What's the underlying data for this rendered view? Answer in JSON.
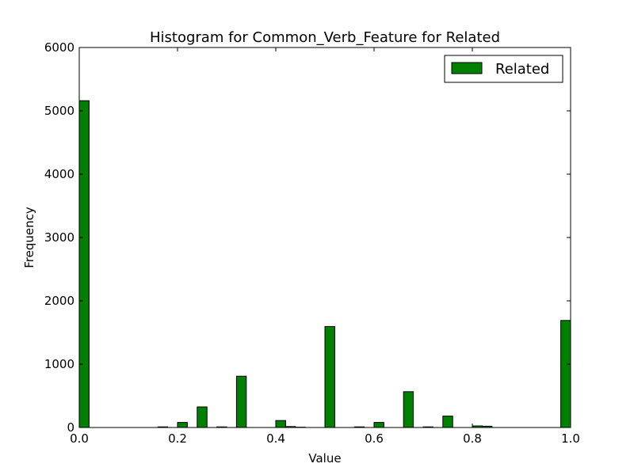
{
  "chart_data": {
    "type": "bar",
    "title": "Histogram for Common_Verb_Feature for Related",
    "xlabel": "Value",
    "ylabel": "Frequency",
    "xlim": [
      0.0,
      1.0
    ],
    "ylim": [
      0,
      6000
    ],
    "bin_width": 0.02,
    "x_ticks": [
      "0.0",
      "0.2",
      "0.4",
      "0.6",
      "0.8",
      "1.0"
    ],
    "y_ticks": [
      "0",
      "1000",
      "2000",
      "3000",
      "4000",
      "5000",
      "6000"
    ],
    "legend_position": "top-right",
    "series": [
      {
        "name": "Related",
        "color": "#008000",
        "bins": [
          {
            "x": 0.0,
            "value": 5160
          },
          {
            "x": 0.16,
            "value": 10
          },
          {
            "x": 0.2,
            "value": 80
          },
          {
            "x": 0.24,
            "value": 325
          },
          {
            "x": 0.28,
            "value": 10
          },
          {
            "x": 0.32,
            "value": 810
          },
          {
            "x": 0.4,
            "value": 110
          },
          {
            "x": 0.42,
            "value": 15
          },
          {
            "x": 0.44,
            "value": 5
          },
          {
            "x": 0.5,
            "value": 1595
          },
          {
            "x": 0.56,
            "value": 10
          },
          {
            "x": 0.6,
            "value": 80
          },
          {
            "x": 0.66,
            "value": 565
          },
          {
            "x": 0.7,
            "value": 10
          },
          {
            "x": 0.74,
            "value": 180
          },
          {
            "x": 0.8,
            "value": 25
          },
          {
            "x": 0.82,
            "value": 20
          },
          {
            "x": 0.98,
            "value": 1690
          }
        ]
      }
    ]
  }
}
